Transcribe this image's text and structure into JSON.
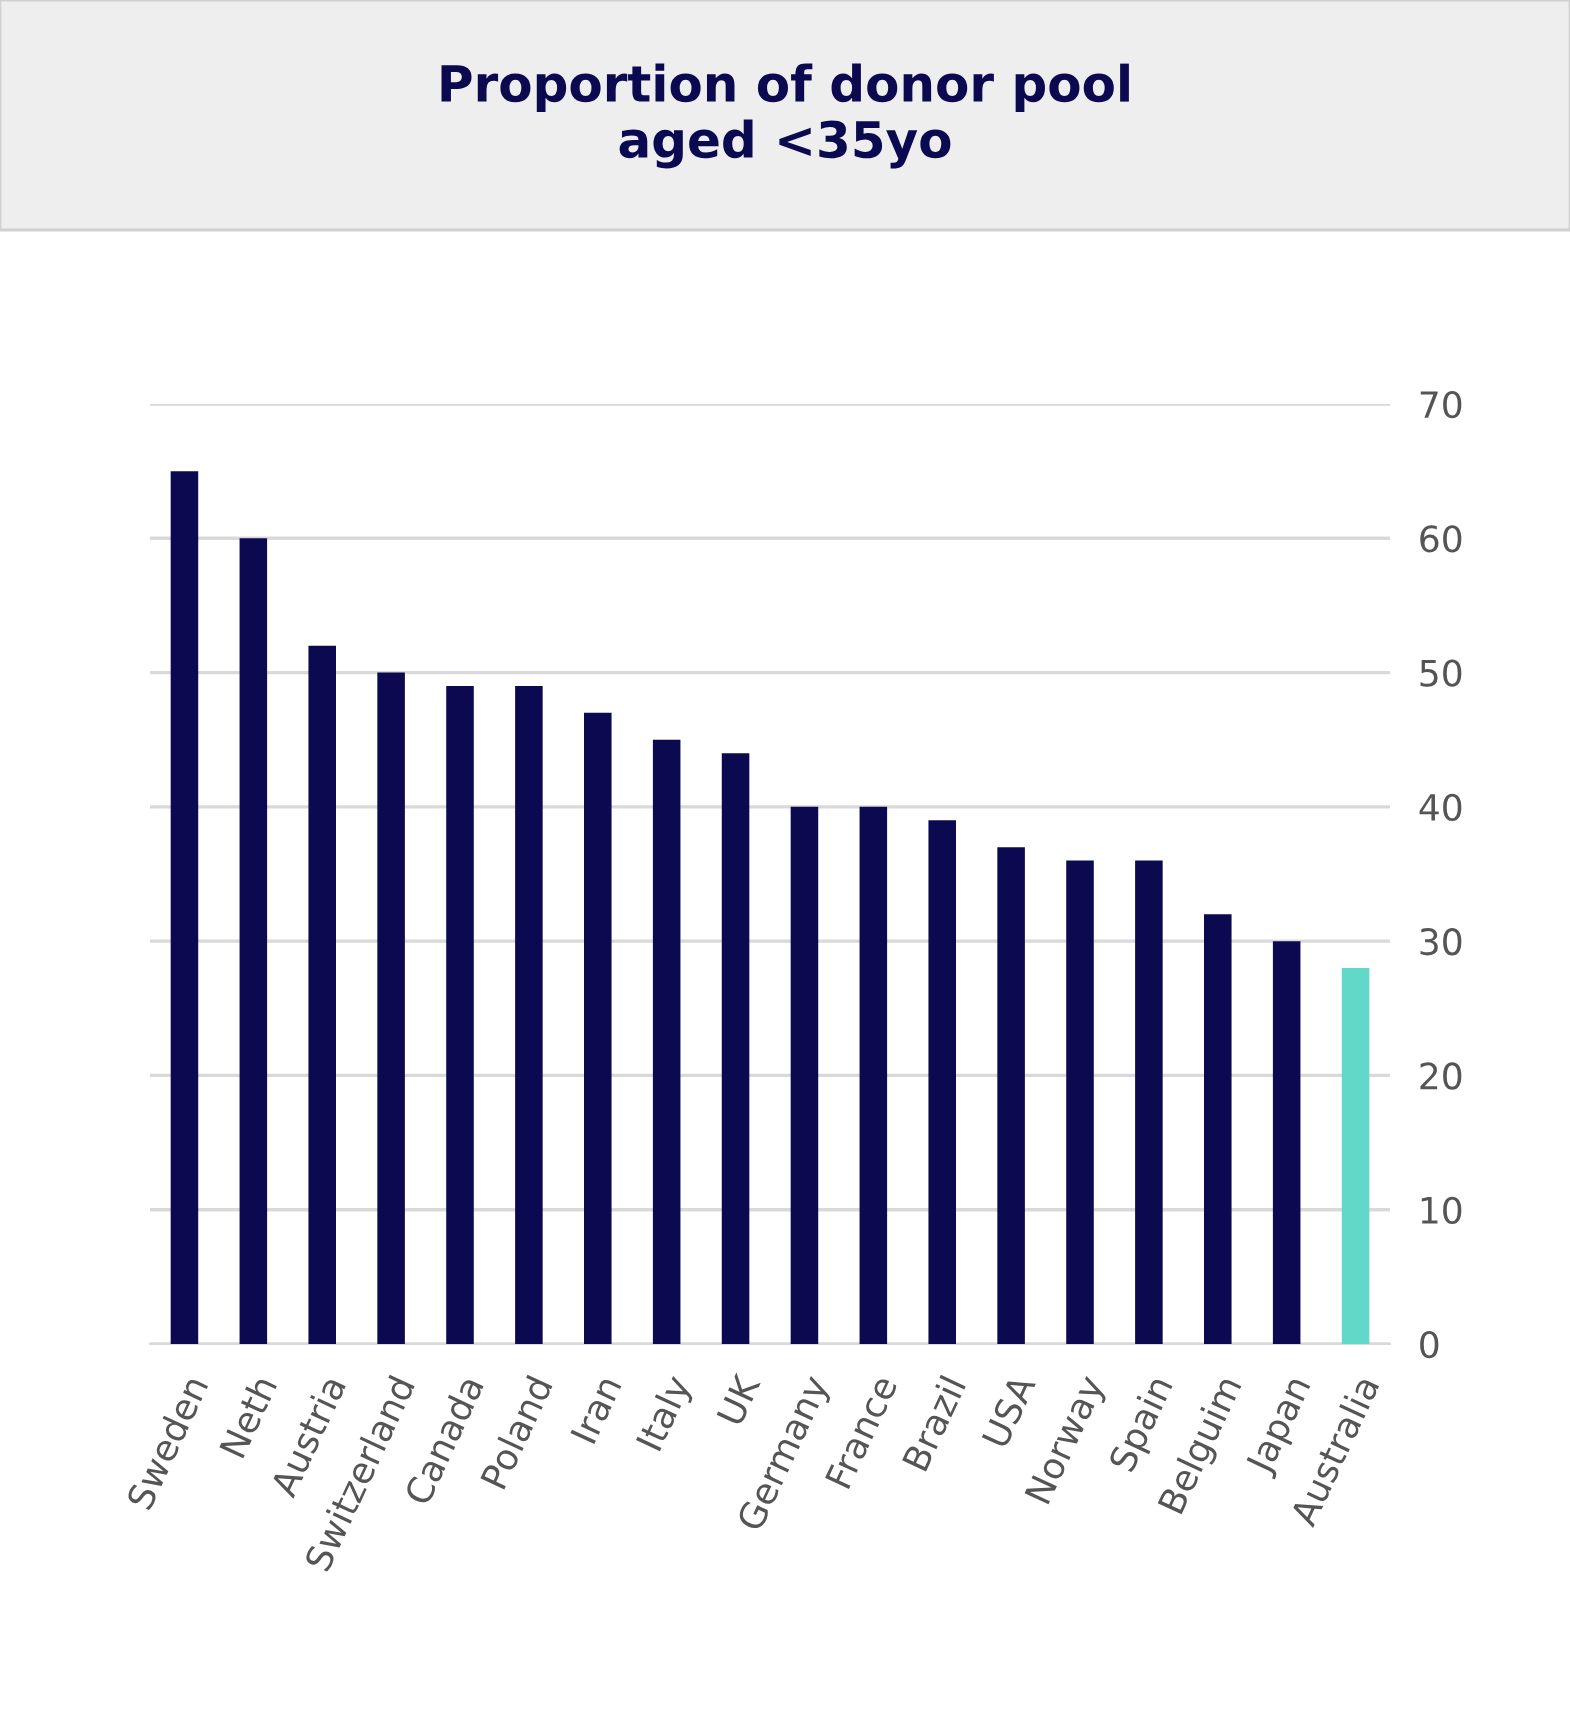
{
  "chart_data": {
    "type": "bar",
    "title": "Proportion of donor pool\naged <35yo",
    "categories": [
      "Sweden",
      "Neth",
      "Austria",
      "Switzerland",
      "Canada",
      "Poland",
      "Iran",
      "Italy",
      "UK",
      "Germany",
      "France",
      "Brazil",
      "USA",
      "Norway",
      "Spain",
      "Belguim",
      "Japan",
      "Australia"
    ],
    "values": [
      65,
      60,
      52,
      50,
      49,
      49,
      47,
      45,
      44,
      40,
      40,
      39,
      37,
      36,
      36,
      32,
      30,
      28
    ],
    "colors": [
      "#0b0950",
      "#0b0950",
      "#0b0950",
      "#0b0950",
      "#0b0950",
      "#0b0950",
      "#0b0950",
      "#0b0950",
      "#0b0950",
      "#0b0950",
      "#0b0950",
      "#0b0950",
      "#0b0950",
      "#0b0950",
      "#0b0950",
      "#0b0950",
      "#0b0950",
      "#62d9c8"
    ],
    "ylim": [
      0,
      70
    ],
    "yticks": [
      0,
      10,
      20,
      30,
      40,
      50,
      60,
      70
    ],
    "grid": "y",
    "legend": false
  }
}
